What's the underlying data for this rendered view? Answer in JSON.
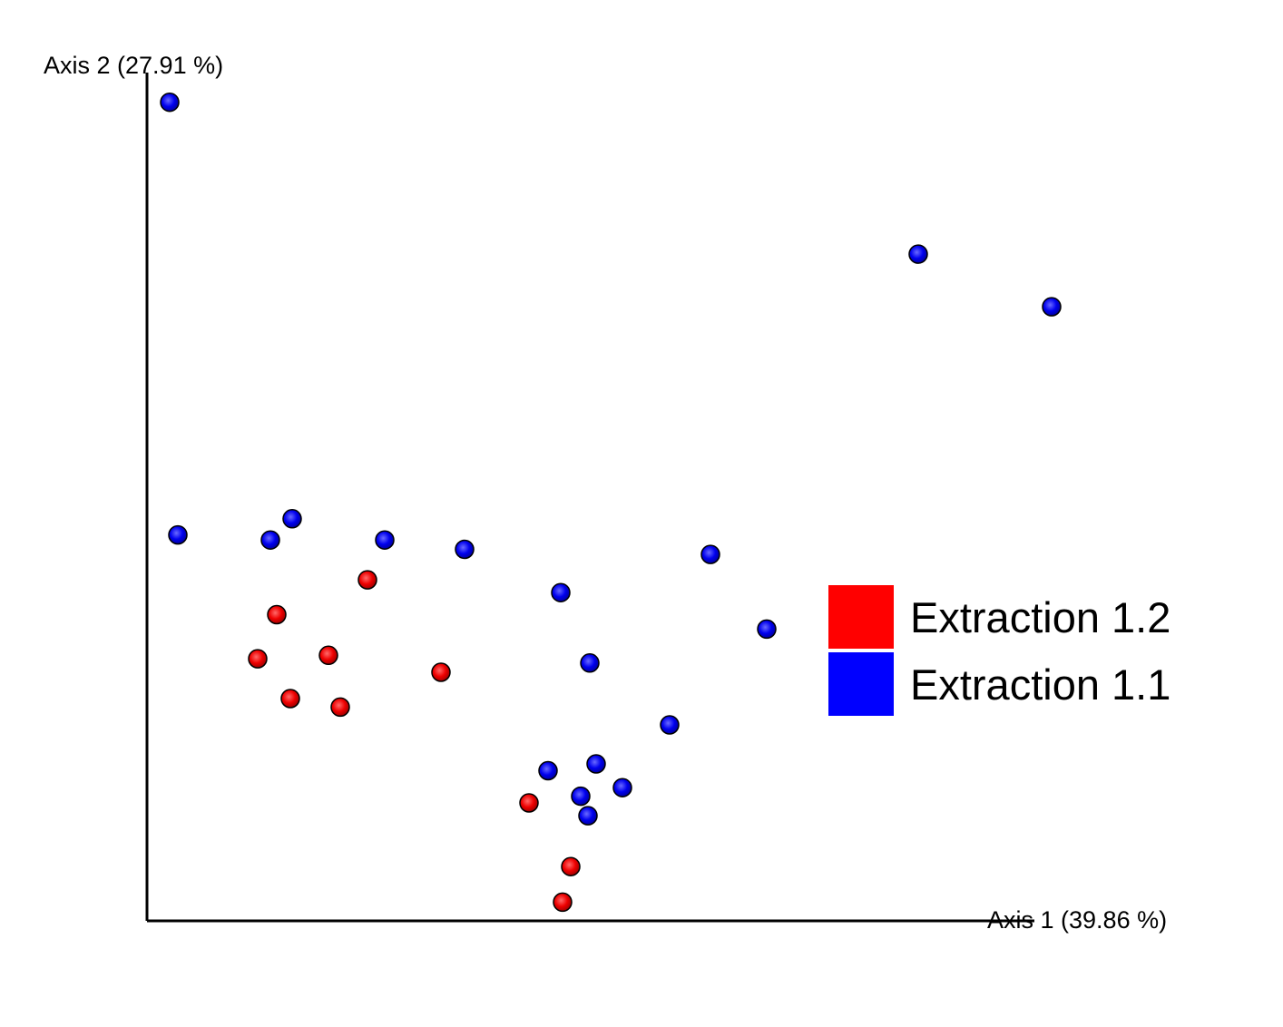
{
  "chart_data": {
    "type": "scatter",
    "xlabel": "Axis 1 (39.86 %)",
    "ylabel": "Axis 2 (27.91 %)",
    "xlim": [
      0,
      1
    ],
    "ylim": [
      0,
      1
    ],
    "grid": false,
    "legend_position": "right",
    "series": [
      {
        "name": "Extraction 1.2",
        "color": "#ff0000",
        "points": [
          {
            "x": 0.243,
            "y": 0.402
          },
          {
            "x": 0.143,
            "y": 0.361
          },
          {
            "x": 0.122,
            "y": 0.309
          },
          {
            "x": 0.2,
            "y": 0.313
          },
          {
            "x": 0.158,
            "y": 0.262
          },
          {
            "x": 0.213,
            "y": 0.252
          },
          {
            "x": 0.324,
            "y": 0.293
          },
          {
            "x": 0.421,
            "y": 0.139
          },
          {
            "x": 0.467,
            "y": 0.064
          },
          {
            "x": 0.458,
            "y": 0.022
          }
        ]
      },
      {
        "name": "Extraction 1.1",
        "color": "#0000ff",
        "points": [
          {
            "x": 0.025,
            "y": 0.965
          },
          {
            "x": 0.85,
            "y": 0.786
          },
          {
            "x": 0.997,
            "y": 0.724
          },
          {
            "x": 0.034,
            "y": 0.455
          },
          {
            "x": 0.16,
            "y": 0.474
          },
          {
            "x": 0.136,
            "y": 0.449
          },
          {
            "x": 0.262,
            "y": 0.449
          },
          {
            "x": 0.35,
            "y": 0.438
          },
          {
            "x": 0.456,
            "y": 0.387
          },
          {
            "x": 0.621,
            "y": 0.432
          },
          {
            "x": 0.683,
            "y": 0.344
          },
          {
            "x": 0.488,
            "y": 0.304
          },
          {
            "x": 0.576,
            "y": 0.231
          },
          {
            "x": 0.442,
            "y": 0.177
          },
          {
            "x": 0.495,
            "y": 0.185
          },
          {
            "x": 0.524,
            "y": 0.157
          },
          {
            "x": 0.478,
            "y": 0.147
          },
          {
            "x": 0.486,
            "y": 0.124
          }
        ]
      }
    ]
  }
}
